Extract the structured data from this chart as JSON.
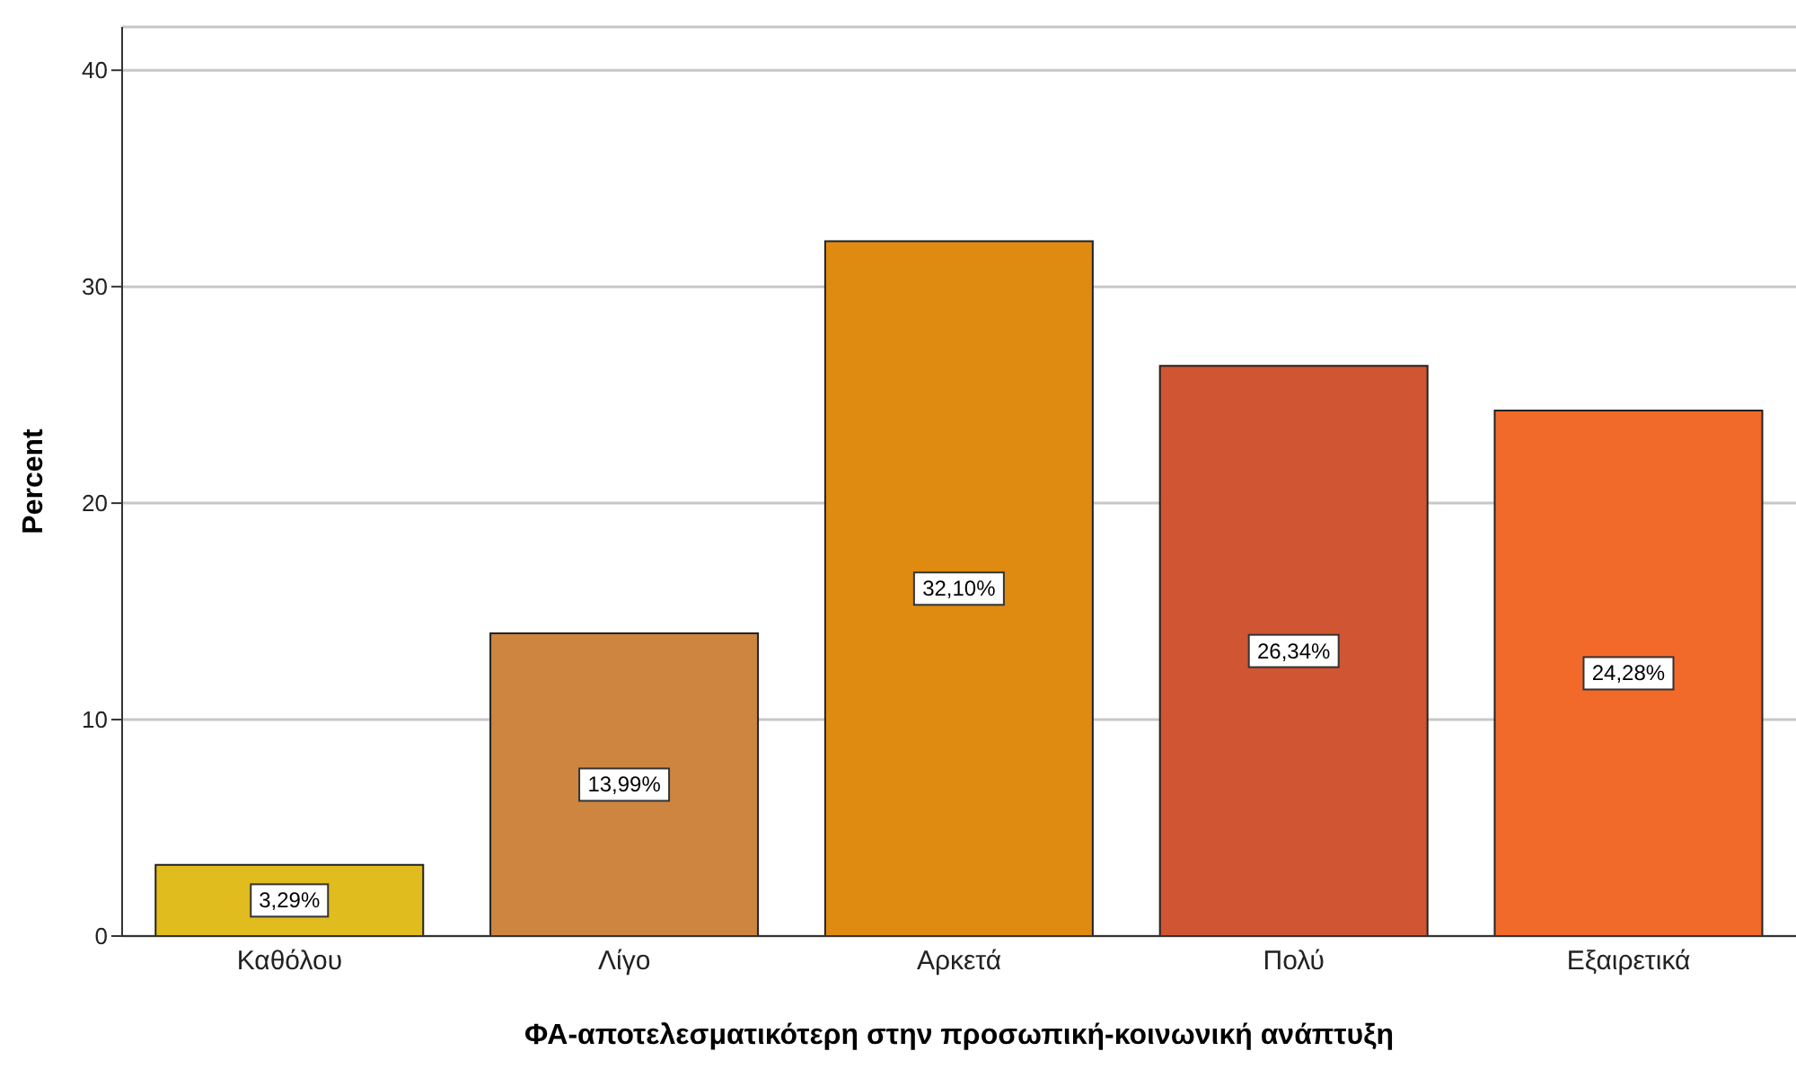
{
  "chart_data": {
    "type": "bar",
    "xlabel": "ΦΑ-αποτελεσματικότερη στην προσωπική-κοινωνική ανάπτυξη",
    "ylabel": "Percent",
    "categories": [
      "Καθόλου",
      "Λίγο",
      "Αρκετά",
      "Πολύ",
      "Εξαιρετικά"
    ],
    "values": [
      3.29,
      13.99,
      32.1,
      26.34,
      24.28
    ],
    "value_labels": [
      "3,29%",
      "13,99%",
      "32,10%",
      "26,34%",
      "24,28%"
    ],
    "colors": [
      "#e0bc1e",
      "#cd8540",
      "#df8a10",
      "#d05532",
      "#f26a2a"
    ],
    "ylim": [
      0,
      42
    ],
    "yticks": [
      0,
      10,
      20,
      30,
      40
    ],
    "grid": "y"
  }
}
